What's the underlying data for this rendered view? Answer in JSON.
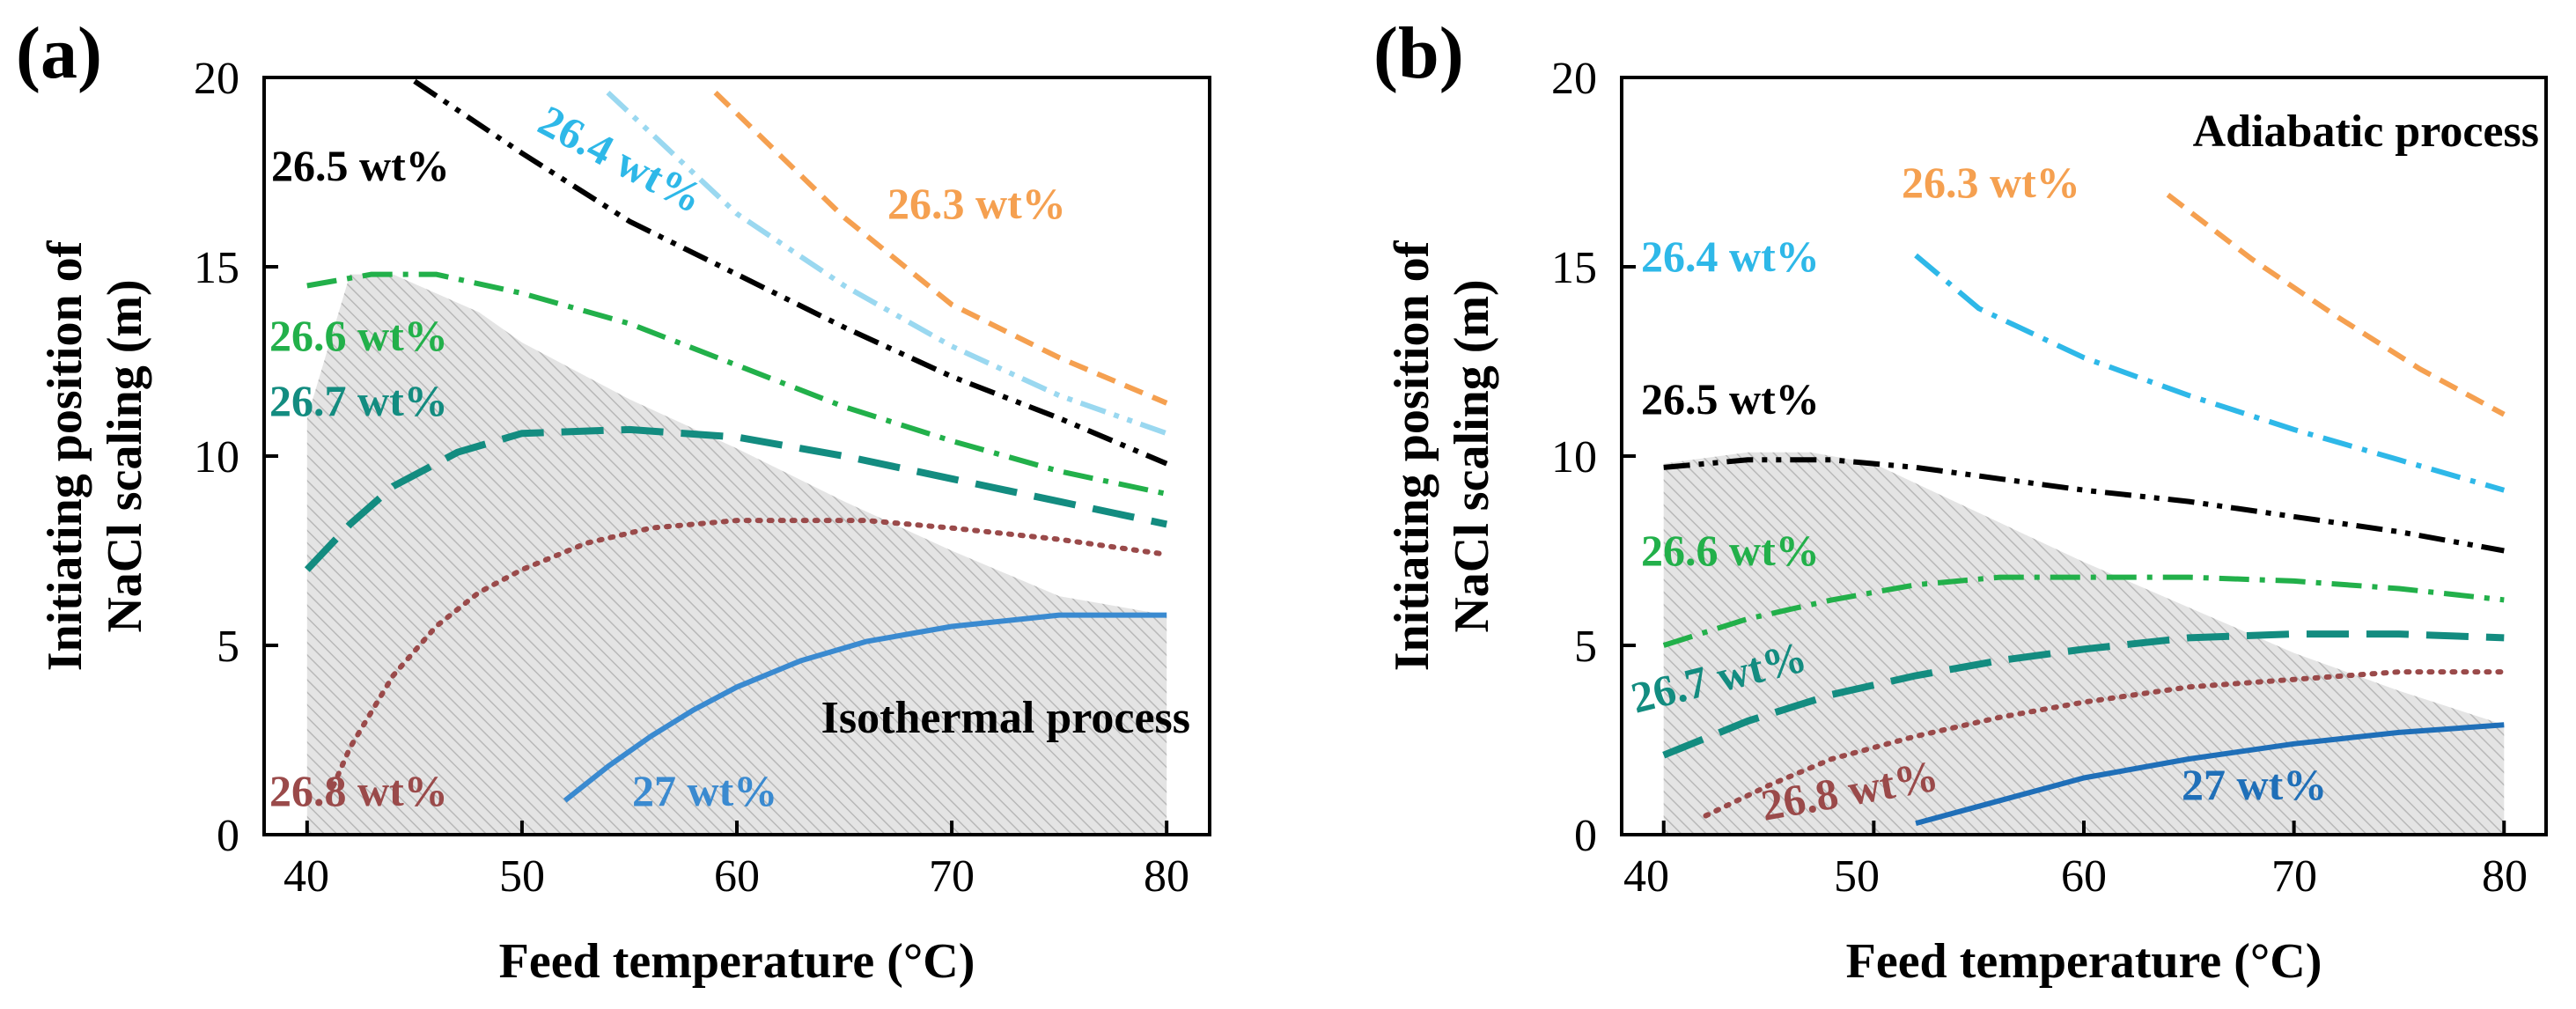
{
  "chart_data": [
    {
      "type": "line",
      "panel_label": "(a)",
      "annotation": "Isothermal process",
      "xlabel": "Feed temperature (°C)",
      "ylabel_line1": "Initiating position of",
      "ylabel_line2": "NaCl scaling  (m)",
      "xlim": [
        38,
        82
      ],
      "ylim": [
        0,
        20
      ],
      "xticks": [
        "40",
        "50",
        "60",
        "70",
        "80"
      ],
      "yticks": [
        "0",
        "5",
        "10",
        "15",
        "20"
      ],
      "grid": false,
      "shaded_region": {
        "x": [
          40,
          42,
          44,
          46,
          48,
          50,
          55,
          60,
          65,
          70,
          75,
          80,
          80,
          40
        ],
        "y": [
          11.0,
          14.8,
          14.8,
          14.3,
          13.8,
          13.0,
          11.5,
          10.2,
          8.8,
          7.5,
          6.3,
          5.8,
          0,
          0
        ]
      },
      "series": [
        {
          "name": "26.3 wt%",
          "color": "#f5a050",
          "dash": "short-dash",
          "x": [
            59,
            65,
            70,
            75,
            80
          ],
          "y": [
            19.6,
            16.3,
            14.0,
            12.6,
            11.4
          ]
        },
        {
          "name": "26.4 wt%",
          "color": "#9ad8f0",
          "dash": "dash-dot-dot",
          "x": [
            54,
            60,
            65,
            70,
            75,
            80
          ],
          "y": [
            19.6,
            16.4,
            14.5,
            12.9,
            11.6,
            10.6
          ]
        },
        {
          "name": "26.5 wt%",
          "color": "#000000",
          "dash": "dash-dot-dot",
          "x": [
            45,
            50,
            55,
            60,
            65,
            70,
            75,
            80
          ],
          "y": [
            19.9,
            18.0,
            16.2,
            14.8,
            13.4,
            12.1,
            11.0,
            9.8
          ]
        },
        {
          "name": "26.6 wt%",
          "color": "#22b04a",
          "dash": "dash-dot",
          "x": [
            40,
            43,
            46,
            50,
            55,
            60,
            65,
            70,
            75,
            80
          ],
          "y": [
            14.5,
            14.8,
            14.8,
            14.3,
            13.5,
            12.4,
            11.3,
            10.4,
            9.6,
            9.0
          ]
        },
        {
          "name": "26.7 wt%",
          "color": "#138c80",
          "dash": "long-dash",
          "x": [
            40,
            42,
            44,
            47,
            50,
            55,
            60,
            65,
            70,
            75,
            80
          ],
          "y": [
            7.0,
            8.2,
            9.2,
            10.1,
            10.6,
            10.7,
            10.5,
            10.0,
            9.4,
            8.8,
            8.2
          ]
        },
        {
          "name": "26.8 wt%",
          "color": "#9a4a4a",
          "dash": "dotted",
          "x": [
            41,
            42,
            44,
            46,
            48,
            50,
            53,
            56,
            60,
            63,
            66,
            70,
            75,
            80
          ],
          "y": [
            1.0,
            2.3,
            4.2,
            5.5,
            6.4,
            7.0,
            7.7,
            8.1,
            8.3,
            8.3,
            8.3,
            8.1,
            7.8,
            7.4
          ]
        },
        {
          "name": "27 wt%",
          "color": "#3a8ad0",
          "dash": "solid",
          "x": [
            52,
            54,
            56,
            58,
            60,
            63,
            66,
            70,
            75,
            80
          ],
          "y": [
            0.9,
            1.8,
            2.6,
            3.3,
            3.9,
            4.6,
            5.1,
            5.5,
            5.8,
            5.8
          ]
        }
      ]
    },
    {
      "type": "line",
      "panel_label": "(b)",
      "annotation": "Adiabatic process",
      "xlabel": "Feed temperature (°C)",
      "ylabel_line1": "Initiating position of",
      "ylabel_line2": "NaCl scaling  (m)",
      "xlim": [
        38,
        82
      ],
      "ylim": [
        0,
        20
      ],
      "xticks": [
        "40",
        "50",
        "60",
        "70",
        "80"
      ],
      "yticks": [
        "0",
        "5",
        "10",
        "15",
        "20"
      ],
      "grid": false,
      "shaded_region": {
        "x": [
          40,
          44,
          47,
          50,
          55,
          60,
          65,
          70,
          75,
          80,
          80,
          40
        ],
        "y": [
          9.8,
          10.1,
          10.1,
          9.8,
          8.5,
          7.2,
          6.0,
          4.8,
          3.8,
          2.9,
          0,
          0
        ]
      },
      "series": [
        {
          "name": "26.3 wt%",
          "color": "#f5a050",
          "dash": "short-dash",
          "x": [
            64,
            68,
            72,
            76,
            80
          ],
          "y": [
            16.9,
            15.2,
            13.7,
            12.3,
            11.1
          ]
        },
        {
          "name": "26.4 wt%",
          "color": "#2eb8e8",
          "dash": "dash-dot",
          "x": [
            52,
            55,
            60,
            65,
            70,
            75,
            80
          ],
          "y": [
            15.3,
            13.9,
            12.6,
            11.6,
            10.7,
            9.9,
            9.1
          ]
        },
        {
          "name": "26.5 wt%",
          "color": "#000000",
          "dash": "dash-dot-dot",
          "x": [
            40,
            44,
            48,
            52,
            56,
            60,
            65,
            70,
            75,
            80
          ],
          "y": [
            9.7,
            9.9,
            9.9,
            9.7,
            9.4,
            9.1,
            8.8,
            8.4,
            8.0,
            7.5
          ]
        },
        {
          "name": "26.6 wt%",
          "color": "#22b04a",
          "dash": "dash-dot",
          "x": [
            40,
            44,
            48,
            52,
            56,
            60,
            65,
            70,
            75,
            80
          ],
          "y": [
            5.0,
            5.7,
            6.2,
            6.6,
            6.8,
            6.8,
            6.8,
            6.7,
            6.5,
            6.2
          ]
        },
        {
          "name": "26.7 wt%",
          "color": "#138c80",
          "dash": "long-dash",
          "x": [
            40,
            44,
            48,
            52,
            56,
            60,
            65,
            70,
            75,
            80
          ],
          "y": [
            2.1,
            3.0,
            3.7,
            4.2,
            4.6,
            4.9,
            5.2,
            5.3,
            5.3,
            5.2
          ]
        },
        {
          "name": "26.8 wt%",
          "color": "#9a4a4a",
          "dash": "dotted",
          "x": [
            42,
            45,
            48,
            52,
            56,
            60,
            65,
            70,
            75,
            80
          ],
          "y": [
            0.5,
            1.3,
            2.0,
            2.6,
            3.1,
            3.5,
            3.9,
            4.1,
            4.3,
            4.3
          ]
        },
        {
          "name": "27 wt%",
          "color": "#1f6fb8",
          "dash": "solid",
          "x": [
            52,
            56,
            60,
            65,
            70,
            75,
            80
          ],
          "y": [
            0.3,
            0.9,
            1.5,
            2.0,
            2.4,
            2.7,
            2.9
          ]
        }
      ]
    }
  ]
}
